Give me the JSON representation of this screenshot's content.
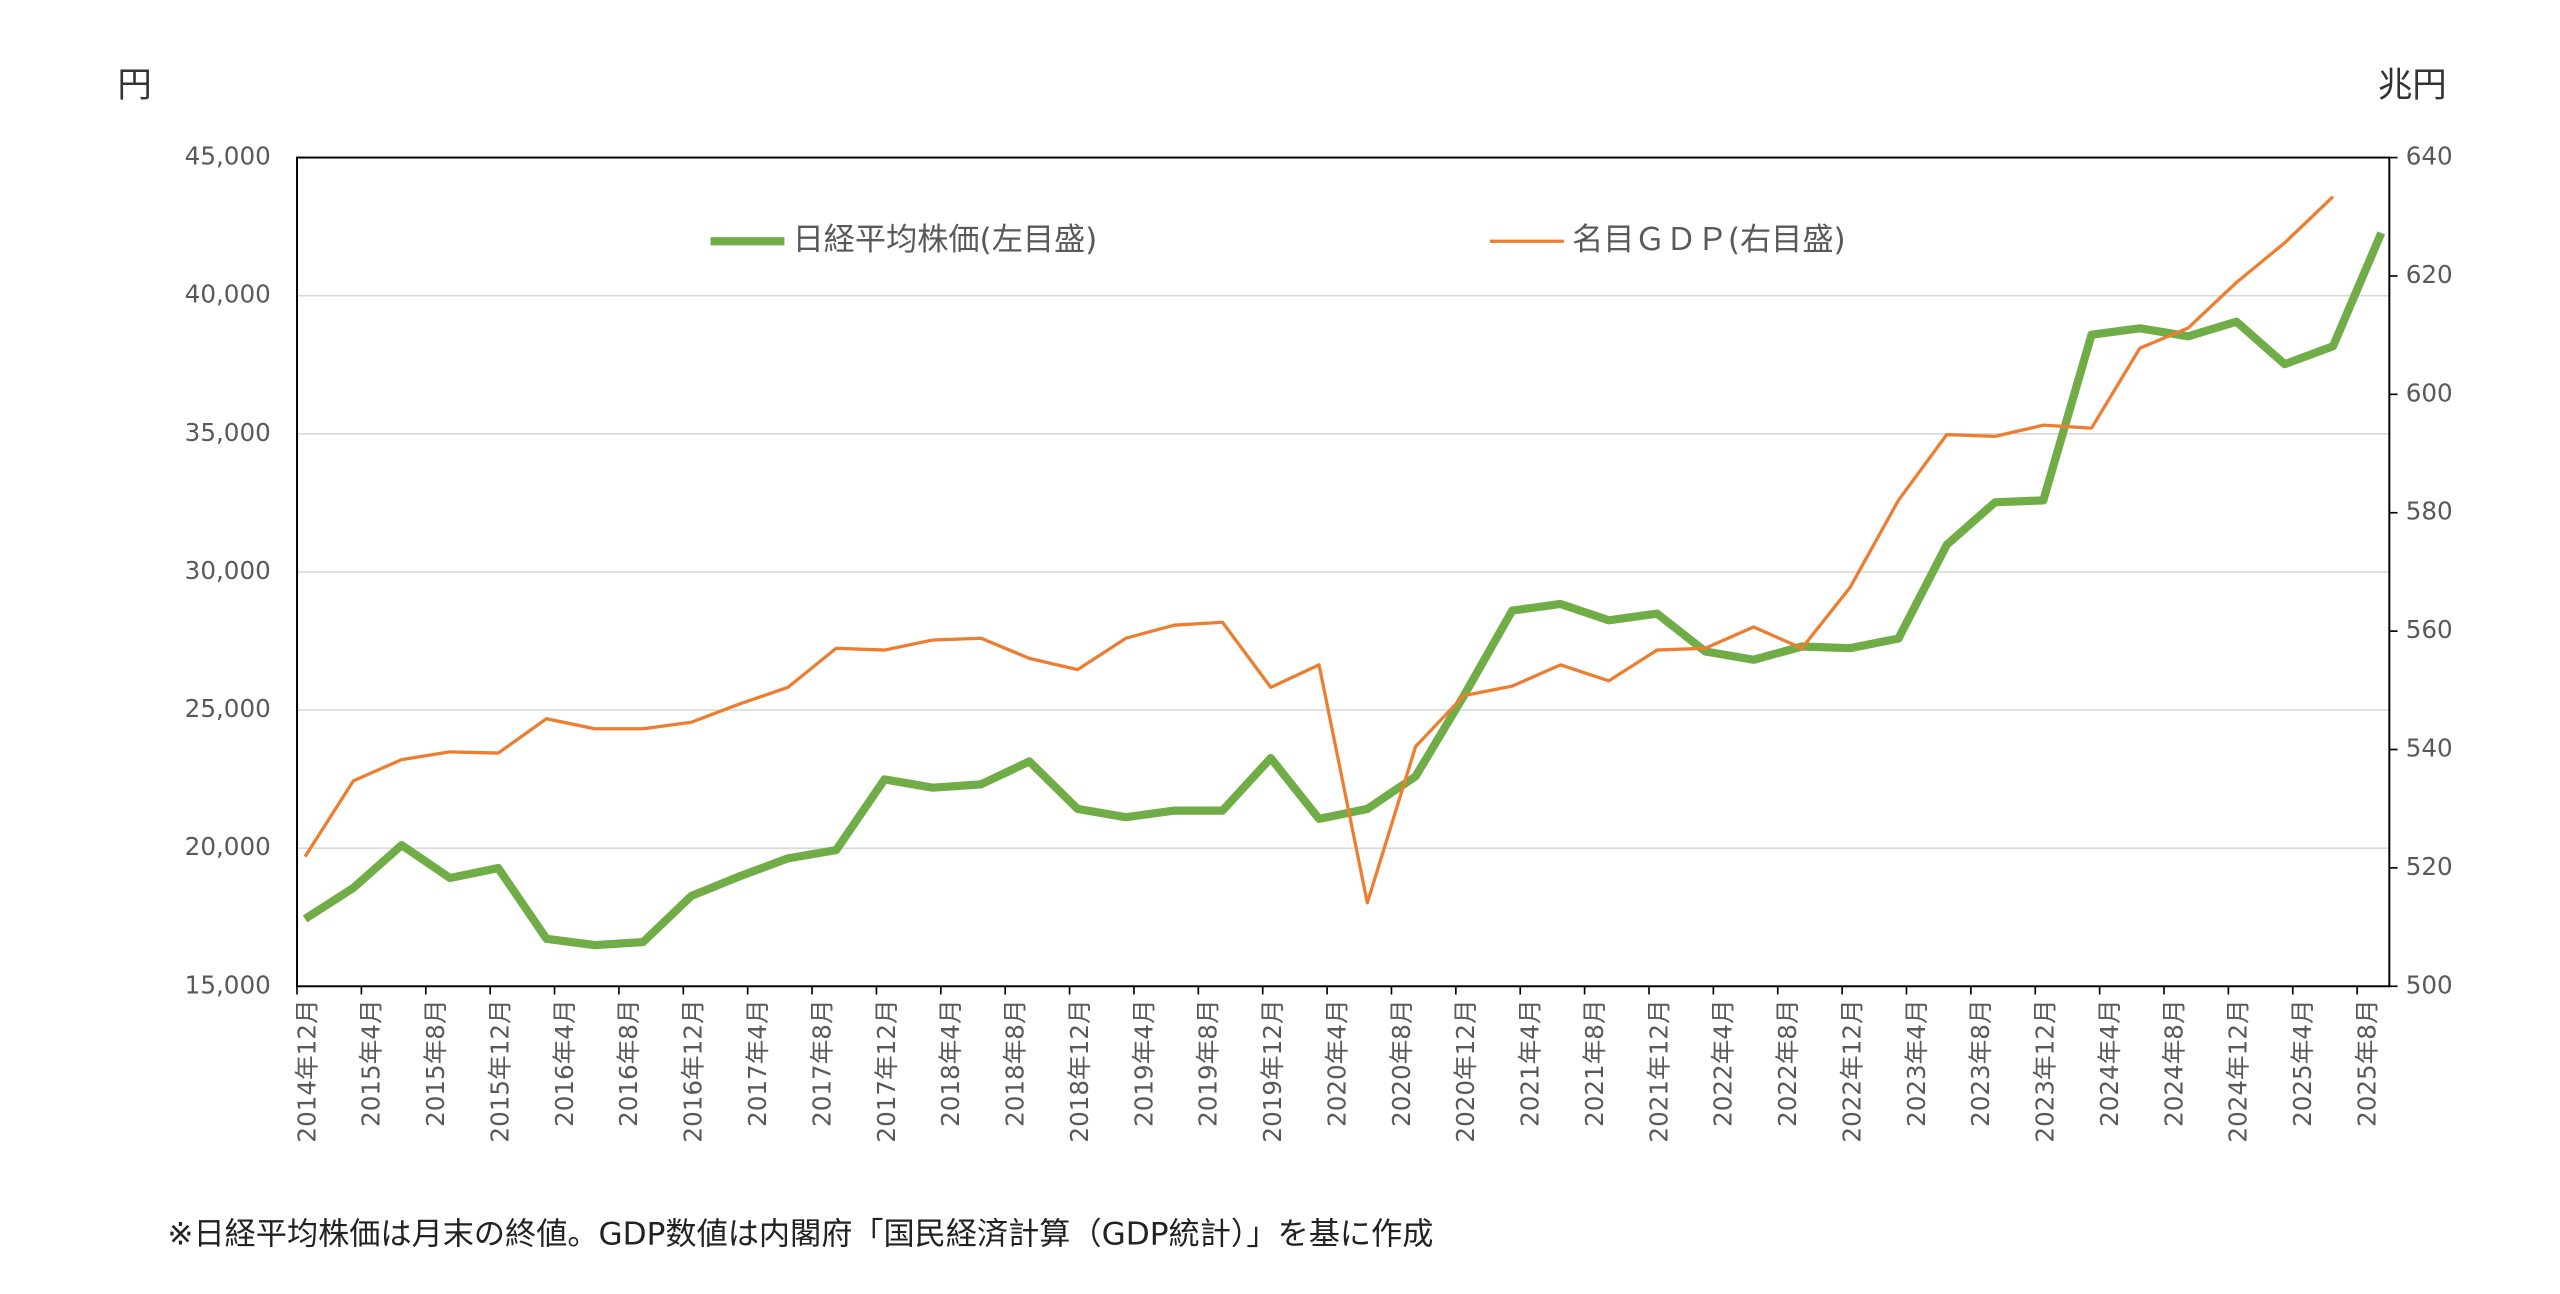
{
  "chart_data": {
    "type": "line",
    "ylabel": "円",
    "y2label": "兆円",
    "note": "※日経平均株価は月末の終値。GDP数値は内閣府「国民経済計算（GDP統計）」を基に作成",
    "x": [
      "2014-12",
      "2015-03",
      "2015-06",
      "2015-09",
      "2015-12",
      "2016-03",
      "2016-06",
      "2016-09",
      "2016-12",
      "2017-03",
      "2017-06",
      "2017-09",
      "2017-12",
      "2018-03",
      "2018-06",
      "2018-09",
      "2018-12",
      "2019-03",
      "2019-06",
      "2019-09",
      "2019-12",
      "2020-03",
      "2020-06",
      "2020-09",
      "2020-12",
      "2021-03",
      "2021-06",
      "2021-09",
      "2021-12",
      "2022-03",
      "2022-06",
      "2022-09",
      "2022-12",
      "2023-03",
      "2023-06",
      "2023-09",
      "2023-12",
      "2024-03",
      "2024-06",
      "2024-09",
      "2024-12",
      "2025-03",
      "2025-06",
      "2025-09"
    ],
    "xlim": [
      "2014-12",
      "2025-09"
    ],
    "xticks": [
      {
        "value": "2014-12",
        "label": "2014年12月"
      },
      {
        "value": "2015-04",
        "label": "2015年4月"
      },
      {
        "value": "2015-08",
        "label": "2015年8月"
      },
      {
        "value": "2015-12",
        "label": "2015年12月"
      },
      {
        "value": "2016-04",
        "label": "2016年4月"
      },
      {
        "value": "2016-08",
        "label": "2016年8月"
      },
      {
        "value": "2016-12",
        "label": "2016年12月"
      },
      {
        "value": "2017-04",
        "label": "2017年4月"
      },
      {
        "value": "2017-08",
        "label": "2017年8月"
      },
      {
        "value": "2017-12",
        "label": "2017年12月"
      },
      {
        "value": "2018-04",
        "label": "2018年4月"
      },
      {
        "value": "2018-08",
        "label": "2018年8月"
      },
      {
        "value": "2018-12",
        "label": "2018年12月"
      },
      {
        "value": "2019-04",
        "label": "2019年4月"
      },
      {
        "value": "2019-08",
        "label": "2019年8月"
      },
      {
        "value": "2019-12",
        "label": "2019年12月"
      },
      {
        "value": "2020-04",
        "label": "2020年4月"
      },
      {
        "value": "2020-08",
        "label": "2020年8月"
      },
      {
        "value": "2020-12",
        "label": "2020年12月"
      },
      {
        "value": "2021-04",
        "label": "2021年4月"
      },
      {
        "value": "2021-08",
        "label": "2021年8月"
      },
      {
        "value": "2021-12",
        "label": "2021年12月"
      },
      {
        "value": "2022-04",
        "label": "2022年4月"
      },
      {
        "value": "2022-08",
        "label": "2022年8月"
      },
      {
        "value": "2022-12",
        "label": "2022年12月"
      },
      {
        "value": "2023-04",
        "label": "2023年4月"
      },
      {
        "value": "2023-08",
        "label": "2023年8月"
      },
      {
        "value": "2023-12",
        "label": "2023年12月"
      },
      {
        "value": "2024-04",
        "label": "2024年4月"
      },
      {
        "value": "2024-08",
        "label": "2024年8月"
      },
      {
        "value": "2024-12",
        "label": "2024年12月"
      },
      {
        "value": "2025-04",
        "label": "2025年4月"
      },
      {
        "value": "2025-08",
        "label": "2025年8月"
      }
    ],
    "ylim": [
      15000,
      45000
    ],
    "yticks": [
      {
        "value": 15000,
        "label": "15,000"
      },
      {
        "value": 20000,
        "label": "20,000"
      },
      {
        "value": 25000,
        "label": "25,000"
      },
      {
        "value": 30000,
        "label": "30,000"
      },
      {
        "value": 35000,
        "label": "35,000"
      },
      {
        "value": 40000,
        "label": "40,000"
      },
      {
        "value": 45000,
        "label": "45,000"
      }
    ],
    "y2lim": [
      500,
      640
    ],
    "y2ticks": [
      500,
      520,
      540,
      560,
      580,
      600,
      620,
      640
    ],
    "grid": true,
    "legend": "top",
    "series": [
      {
        "name": "日経平均株価(左目盛)",
        "color": "#70ad47",
        "width": 5,
        "values": [
          17440,
          18560,
          20110,
          18920,
          19280,
          16720,
          16490,
          16600,
          18270,
          18980,
          19630,
          19930,
          22490,
          22190,
          22310,
          23140,
          21420,
          21120,
          21360,
          21360,
          23260,
          21060,
          21420,
          22600,
          25520,
          28600,
          28840,
          28250,
          28490,
          27120,
          26820,
          27300,
          27240,
          27590,
          30980,
          32520,
          32590,
          38590,
          38820,
          38530,
          39060,
          37520,
          38170,
          42270
        ]
      },
      {
        "name": "名目ＧＤＰ(右目盛)",
        "color": "#ed7d31",
        "width": 2,
        "axis": "y2",
        "values": [
          521.9,
          534.7,
          538.3,
          539.6,
          539.4,
          545.2,
          543.5,
          543.5,
          544.6,
          547.7,
          550.5,
          557.1,
          556.8,
          558.5,
          558.8,
          555.4,
          553.5,
          558.8,
          561.0,
          561.5,
          550.5,
          554.3,
          514.1,
          540.5,
          549.1,
          550.7,
          554.3,
          551.6,
          556.8,
          557.1,
          560.7,
          557.1,
          567.4,
          582.1,
          593.2,
          592.9,
          594.8,
          594.3,
          607.8,
          611.2,
          618.9,
          625.6,
          633.4,
          null
        ]
      }
    ]
  }
}
